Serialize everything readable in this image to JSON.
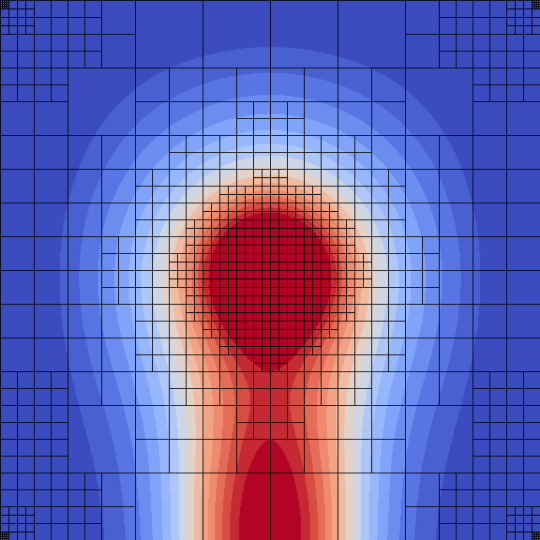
{
  "visualization": {
    "type": "adaptive-mesh-contour",
    "colormap": "coolwarm",
    "contour_levels": 16,
    "colors": {
      "cold": "#3b4cc0",
      "neutral": "#dddddd",
      "hot": "#b40426",
      "mesh_line": "#000000"
    },
    "field": {
      "peak_value": 1.0,
      "peak_center": [
        0.5,
        0.5
      ],
      "secondary_source": "bottom-center"
    },
    "mesh": {
      "base_level": 4,
      "max_level": 5,
      "refined_region": "center",
      "corner_refinement": [
        "top-left",
        "top-right",
        "bottom-left",
        "bottom-right"
      ]
    }
  }
}
